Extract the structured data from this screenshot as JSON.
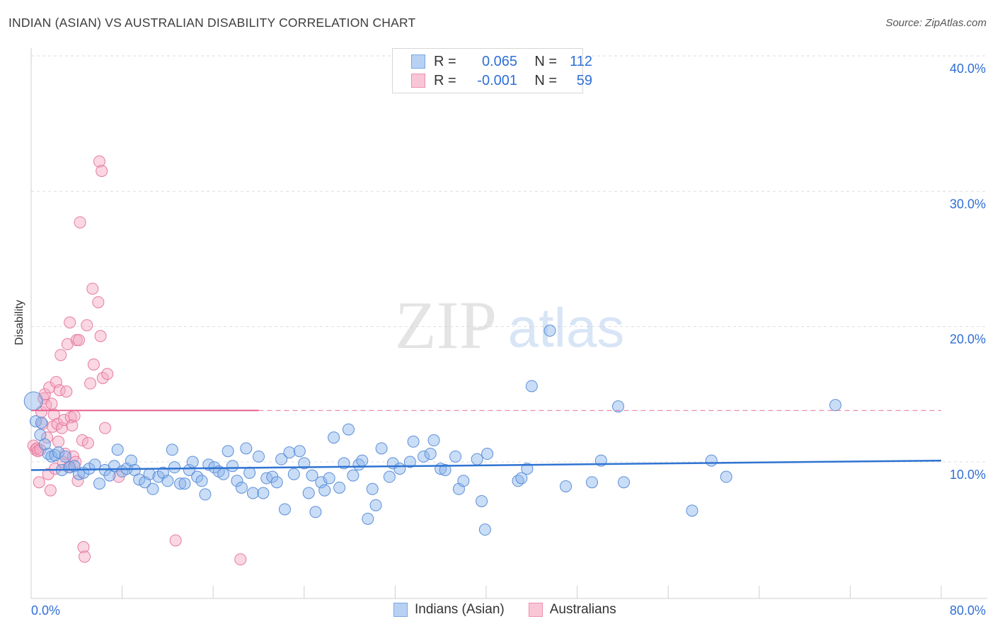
{
  "header": {
    "title": "INDIAN (ASIAN) VS AUSTRALIAN DISABILITY CORRELATION CHART",
    "source": "Source: ZipAtlas.com"
  },
  "watermark": {
    "zip": "ZIP",
    "atlas": "atlas"
  },
  "colors": {
    "blue": "#8ab4ea",
    "blue_stroke": "#5b8fd8",
    "blue_line": "#2f73d2",
    "pink": "#f4a7c0",
    "pink_stroke": "#e57ba0",
    "pink_line": "#e8608f",
    "grid": "#dddddd"
  },
  "legend": {
    "rows": [
      {
        "label": "R =",
        "r": "0.065",
        "n_label": "N =",
        "n": "112"
      },
      {
        "label": "R =",
        "r": "-0.001",
        "n_label": "N =",
        "n": "59"
      }
    ]
  },
  "bottom_legend": [
    "Indians (Asian)",
    "Australians"
  ],
  "chart_data": {
    "type": "scatter",
    "title": "INDIAN (ASIAN) VS AUSTRALIAN DISABILITY CORRELATION CHART",
    "xlabel": "",
    "ylabel": "Disability",
    "xlim": [
      0,
      80
    ],
    "ylim": [
      0,
      41
    ],
    "x_tick_labels": [
      "0.0%",
      "80.0%"
    ],
    "y_ticks": [
      10,
      20,
      30,
      40
    ],
    "y_tick_labels": [
      "10.0%",
      "20.0%",
      "30.0%",
      "40.0%"
    ],
    "grid": true,
    "series": [
      {
        "name": "Indians (Asian)",
        "R": 0.065,
        "N": 112,
        "trend": {
          "x0": 0,
          "y0": 9.4,
          "x1": 80,
          "y1": 10.1
        },
        "points": [
          [
            0.2,
            14.5
          ],
          [
            0.4,
            13.0
          ],
          [
            0.8,
            12.0
          ],
          [
            1.2,
            11.3
          ],
          [
            1.5,
            10.6
          ],
          [
            1.8,
            10.4
          ],
          [
            2.1,
            10.5
          ],
          [
            2.4,
            10.7
          ],
          [
            2.7,
            9.4
          ],
          [
            3.0,
            10.4
          ],
          [
            3.4,
            9.6
          ],
          [
            3.8,
            9.7
          ],
          [
            4.2,
            9.1
          ],
          [
            4.6,
            9.2
          ],
          [
            5.1,
            9.5
          ],
          [
            5.6,
            9.8
          ],
          [
            6.0,
            8.4
          ],
          [
            6.5,
            9.4
          ],
          [
            6.9,
            9.0
          ],
          [
            7.3,
            9.7
          ],
          [
            7.6,
            10.9
          ],
          [
            8.0,
            9.3
          ],
          [
            8.4,
            9.5
          ],
          [
            8.8,
            10.1
          ],
          [
            9.1,
            9.4
          ],
          [
            9.5,
            8.7
          ],
          [
            10.0,
            8.5
          ],
          [
            10.4,
            9.1
          ],
          [
            10.7,
            8.0
          ],
          [
            11.2,
            8.9
          ],
          [
            11.6,
            9.2
          ],
          [
            12.0,
            8.6
          ],
          [
            12.4,
            10.9
          ],
          [
            12.6,
            9.6
          ],
          [
            13.1,
            8.4
          ],
          [
            13.5,
            8.4
          ],
          [
            13.9,
            9.4
          ],
          [
            14.2,
            10.0
          ],
          [
            14.6,
            8.9
          ],
          [
            15.0,
            8.6
          ],
          [
            15.3,
            7.6
          ],
          [
            15.6,
            9.8
          ],
          [
            16.1,
            9.6
          ],
          [
            16.5,
            9.3
          ],
          [
            16.9,
            9.1
          ],
          [
            17.3,
            10.8
          ],
          [
            17.7,
            9.7
          ],
          [
            18.1,
            8.6
          ],
          [
            18.5,
            8.1
          ],
          [
            18.9,
            11.0
          ],
          [
            19.2,
            9.2
          ],
          [
            19.5,
            7.7
          ],
          [
            20.0,
            10.4
          ],
          [
            20.4,
            7.7
          ],
          [
            20.7,
            8.8
          ],
          [
            21.2,
            8.9
          ],
          [
            21.6,
            8.5
          ],
          [
            22.0,
            10.2
          ],
          [
            22.3,
            6.5
          ],
          [
            22.7,
            10.7
          ],
          [
            23.1,
            9.1
          ],
          [
            23.6,
            10.8
          ],
          [
            24.0,
            9.9
          ],
          [
            24.4,
            7.7
          ],
          [
            24.7,
            9.0
          ],
          [
            25.0,
            6.3
          ],
          [
            25.5,
            8.5
          ],
          [
            25.8,
            7.9
          ],
          [
            26.2,
            8.8
          ],
          [
            26.6,
            11.8
          ],
          [
            27.1,
            8.1
          ],
          [
            27.5,
            9.9
          ],
          [
            27.9,
            12.4
          ],
          [
            28.3,
            9.0
          ],
          [
            28.8,
            9.8
          ],
          [
            29.1,
            10.1
          ],
          [
            29.6,
            5.8
          ],
          [
            30.0,
            8.0
          ],
          [
            30.3,
            6.8
          ],
          [
            30.8,
            11.0
          ],
          [
            31.5,
            8.9
          ],
          [
            31.8,
            9.9
          ],
          [
            32.4,
            9.5
          ],
          [
            33.3,
            10.0
          ],
          [
            33.6,
            11.5
          ],
          [
            34.5,
            10.4
          ],
          [
            35.1,
            10.6
          ],
          [
            35.4,
            11.6
          ],
          [
            36.0,
            9.5
          ],
          [
            36.4,
            9.4
          ],
          [
            37.3,
            10.4
          ],
          [
            37.6,
            8.0
          ],
          [
            38.0,
            8.6
          ],
          [
            39.2,
            10.2
          ],
          [
            39.6,
            7.1
          ],
          [
            40.1,
            10.6
          ],
          [
            39.9,
            5.0
          ],
          [
            42.8,
            8.6
          ],
          [
            43.1,
            8.8
          ],
          [
            43.6,
            9.5
          ],
          [
            44.0,
            15.6
          ],
          [
            45.6,
            19.7
          ],
          [
            47.0,
            8.2
          ],
          [
            49.3,
            8.5
          ],
          [
            50.1,
            10.1
          ],
          [
            51.6,
            14.1
          ],
          [
            52.1,
            8.5
          ],
          [
            58.1,
            6.4
          ],
          [
            59.8,
            10.1
          ],
          [
            61.1,
            8.9
          ],
          [
            70.7,
            14.2
          ],
          [
            0.9,
            12.9
          ]
        ]
      },
      {
        "name": "Australians",
        "R": -0.001,
        "N": 59,
        "trend": {
          "x0": 0,
          "y0": 13.8,
          "x1": 20,
          "y1": 13.8,
          "dashed_to": 80
        },
        "points": [
          [
            0.2,
            11.2
          ],
          [
            0.4,
            10.9
          ],
          [
            0.5,
            11.0
          ],
          [
            0.6,
            10.8
          ],
          [
            0.7,
            8.5
          ],
          [
            0.8,
            10.9
          ],
          [
            0.9,
            13.7
          ],
          [
            1.0,
            12.8
          ],
          [
            1.1,
            14.7
          ],
          [
            1.2,
            15.0
          ],
          [
            1.3,
            14.2
          ],
          [
            1.4,
            11.8
          ],
          [
            1.5,
            9.1
          ],
          [
            1.6,
            15.5
          ],
          [
            1.7,
            7.9
          ],
          [
            1.8,
            14.3
          ],
          [
            1.9,
            12.6
          ],
          [
            2.0,
            13.5
          ],
          [
            2.1,
            9.5
          ],
          [
            2.2,
            15.9
          ],
          [
            2.3,
            12.8
          ],
          [
            2.4,
            11.5
          ],
          [
            2.5,
            15.3
          ],
          [
            2.6,
            17.9
          ],
          [
            2.7,
            12.5
          ],
          [
            2.8,
            10.0
          ],
          [
            2.9,
            13.1
          ],
          [
            3.0,
            10.6
          ],
          [
            3.1,
            15.2
          ],
          [
            3.2,
            18.7
          ],
          [
            3.3,
            9.6
          ],
          [
            3.4,
            20.3
          ],
          [
            3.5,
            13.3
          ],
          [
            3.6,
            12.7
          ],
          [
            3.7,
            10.4
          ],
          [
            3.8,
            13.4
          ],
          [
            3.9,
            10.0
          ],
          [
            4.0,
            19.0
          ],
          [
            4.1,
            8.6
          ],
          [
            4.2,
            19.0
          ],
          [
            4.3,
            27.7
          ],
          [
            4.5,
            11.6
          ],
          [
            4.6,
            3.7
          ],
          [
            4.7,
            3.0
          ],
          [
            4.9,
            20.1
          ],
          [
            5.0,
            11.4
          ],
          [
            5.2,
            15.8
          ],
          [
            5.4,
            22.8
          ],
          [
            5.5,
            17.2
          ],
          [
            5.9,
            21.8
          ],
          [
            6.0,
            32.2
          ],
          [
            6.1,
            19.3
          ],
          [
            6.2,
            31.5
          ],
          [
            6.3,
            16.2
          ],
          [
            6.5,
            12.5
          ],
          [
            6.7,
            16.5
          ],
          [
            7.7,
            8.9
          ],
          [
            12.7,
            4.2
          ],
          [
            18.4,
            2.8
          ]
        ]
      }
    ]
  }
}
